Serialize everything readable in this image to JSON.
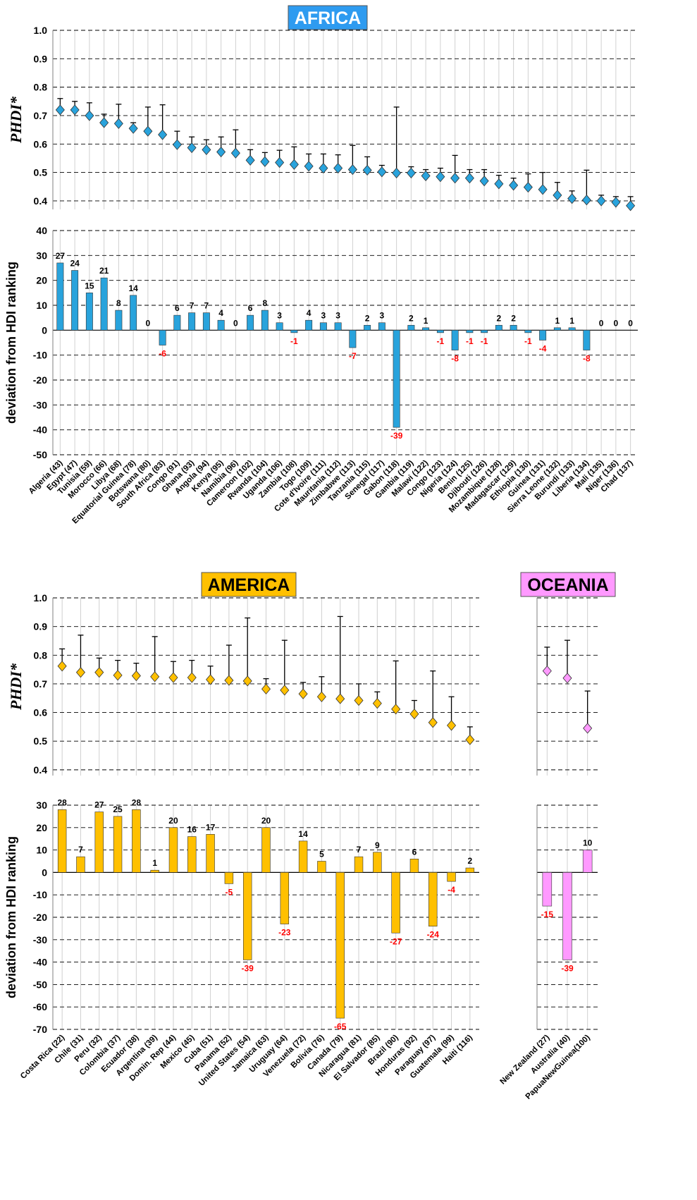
{
  "chart_data": [
    {
      "type": "whisker",
      "title": "AFRICA",
      "title_color": "#2e9bf0",
      "title_text_color": "#ffffff",
      "y_label": "PHDI*",
      "color": "#29a3dc",
      "values": [
        0.72,
        0.72,
        0.7,
        0.675,
        0.672,
        0.655,
        0.645,
        0.633,
        0.598,
        0.587,
        0.58,
        0.572,
        0.568,
        0.543,
        0.538,
        0.535,
        0.528,
        0.522,
        0.515,
        0.515,
        0.51,
        0.508,
        0.502,
        0.498,
        0.498,
        0.488,
        0.485,
        0.48,
        0.48,
        0.47,
        0.46,
        0.455,
        0.448,
        0.44,
        0.42,
        0.408,
        0.403,
        0.4,
        0.395,
        0.383
      ],
      "upper": [
        0.76,
        0.75,
        0.745,
        0.705,
        0.74,
        0.675,
        0.73,
        0.738,
        0.645,
        0.625,
        0.615,
        0.625,
        0.65,
        0.58,
        0.57,
        0.578,
        0.59,
        0.565,
        0.565,
        0.562,
        0.595,
        0.555,
        0.525,
        0.73,
        0.52,
        0.51,
        0.515,
        0.56,
        0.51,
        0.51,
        0.49,
        0.48,
        0.495,
        0.5,
        0.465,
        0.435,
        0.508,
        0.42,
        0.415,
        0.415
      ],
      "ylim": [
        0.37,
        1.0
      ],
      "yticks": [
        0.4,
        0.5,
        0.6,
        0.7,
        0.8,
        0.9,
        {
          "value": 1.0,
          "label": "1.0"
        }
      ],
      "grid": true
    },
    {
      "type": "bar",
      "y_label": "deviation from HDI ranking",
      "color": "#29a3dc",
      "negative_label_color": "#ff0000",
      "categories": [
        "Algeria (43)",
        "Egypt (47)",
        "Tunisia (59)",
        "Morocco (66)",
        "Libya (68)",
        "Equatorial Guinea (78)",
        "Botswana (80)",
        "South Africa (83)",
        "Congo (91)",
        "Ghana (93)",
        "Angola (94)",
        "Kenya (95)",
        "Namibia (96)",
        "Cameroon (102)",
        "Rwanda (104)",
        "Uganda (106)",
        "Zambia (108)",
        "Togo (109)",
        "Cote d'Ivoire (111)",
        "Mauritania (112)",
        "Zimbabwe (113)",
        "Tanzania (115)",
        "Senegal (117)",
        "Gabon (118)",
        "Gambia (119)",
        "Malawi (122)",
        "Congo (123)",
        "Nigeria (124)",
        "Benin (125)",
        "Djibouti (126)",
        "Mozambique (128)",
        "Madagascar (129)",
        "Ethiopia (130)",
        "Guinea (131)",
        "Sierra Leone (132)",
        "Burundi (133)",
        "Liberia (134)",
        "Mali (135)",
        "Niger (136)",
        "Chad (137)"
      ],
      "values": [
        27,
        24,
        15,
        21,
        8,
        14,
        0,
        -6,
        6,
        7,
        7,
        4,
        0,
        6,
        8,
        3,
        -1,
        4,
        3,
        3,
        -7,
        2,
        3,
        -39,
        2,
        1,
        -1,
        -8,
        -1,
        -1,
        2,
        2,
        -1,
        -4,
        1,
        1,
        -8,
        0,
        0,
        0
      ],
      "ylim": [
        -50,
        40
      ],
      "yticks": [
        -50,
        -40,
        -30,
        -20,
        -10,
        0,
        10,
        20,
        30,
        40
      ],
      "grid": true
    },
    {
      "type": "whisker",
      "title": "AMERICA",
      "title_color": "#ffc000",
      "title_text_color": "#000000",
      "y_label": "PHDI*",
      "color": "#ffc000",
      "values": [
        0.762,
        0.74,
        0.74,
        0.73,
        0.728,
        0.725,
        0.722,
        0.722,
        0.715,
        0.712,
        0.71,
        0.682,
        0.678,
        0.665,
        0.655,
        0.648,
        0.642,
        0.632,
        0.612,
        0.595,
        0.565,
        0.555,
        0.505
      ],
      "upper": [
        0.822,
        0.87,
        0.79,
        0.782,
        0.772,
        0.865,
        0.778,
        0.782,
        0.762,
        0.835,
        0.93,
        0.718,
        0.852,
        0.705,
        0.725,
        0.935,
        0.7,
        0.672,
        0.78,
        0.642,
        0.745,
        0.655,
        0.55
      ],
      "ylim": [
        0.38,
        1.0
      ],
      "yticks": [
        0.4,
        0.5,
        0.6,
        0.7,
        0.8,
        0.9,
        {
          "value": 1.0,
          "label": "1.0"
        }
      ],
      "grid": true
    },
    {
      "type": "bar",
      "y_label": "deviation from HDI ranking",
      "color": "#ffc000",
      "negative_label_color": "#ff0000",
      "categories": [
        "Costa Rica (22)",
        "Chile (31)",
        "Peru (32)",
        "Colombia (37)",
        "Ecuador (38)",
        "Argentina (39)",
        "Domin. Rep (44)",
        "Mexico (45)",
        "Cuba (51)",
        "Panama (52)",
        "United States (54)",
        "Jamaica (63)",
        "Uruguay (64)",
        "Venezuela (72)",
        "Bolivia (76)",
        "Canada (79)",
        "Nicaragua (81)",
        "El Salvador (85)",
        "Brazil (90)",
        "Honduras (92)",
        "Paraguay (97)",
        "Guatemala (99)",
        "Haiti (116)"
      ],
      "values": [
        28,
        7,
        27,
        25,
        28,
        1,
        20,
        16,
        17,
        -5,
        -39,
        20,
        -23,
        14,
        5,
        -65,
        7,
        9,
        -27,
        6,
        -24,
        -4,
        2
      ],
      "ylim": [
        -70,
        30
      ],
      "yticks": [
        -70,
        -60,
        -50,
        -40,
        -30,
        -20,
        -10,
        0,
        10,
        20,
        30
      ],
      "grid": true
    },
    {
      "type": "whisker",
      "title": "OCEANIA",
      "title_color": "#ff99ff",
      "title_text_color": "#000000",
      "color": "#ff99ff",
      "values": [
        0.745,
        0.72,
        0.545
      ],
      "upper": [
        0.828,
        0.852,
        0.675
      ],
      "ylim": [
        0.38,
        1.0
      ],
      "yticks": [
        0.4,
        0.5,
        0.6,
        0.7,
        0.8,
        0.9,
        1.0
      ],
      "grid": true
    },
    {
      "type": "bar",
      "color": "#ff99ff",
      "negative_label_color": "#ff0000",
      "categories": [
        "New Zealand (27)",
        "Australia (40)",
        "PapuaNewGuinea(100)"
      ],
      "values": [
        -15,
        -39,
        10
      ],
      "ylim": [
        -70,
        30
      ],
      "yticks": [
        -70,
        -60,
        -50,
        -40,
        -30,
        -20,
        -10,
        0,
        10,
        20,
        30
      ],
      "grid": true
    }
  ]
}
